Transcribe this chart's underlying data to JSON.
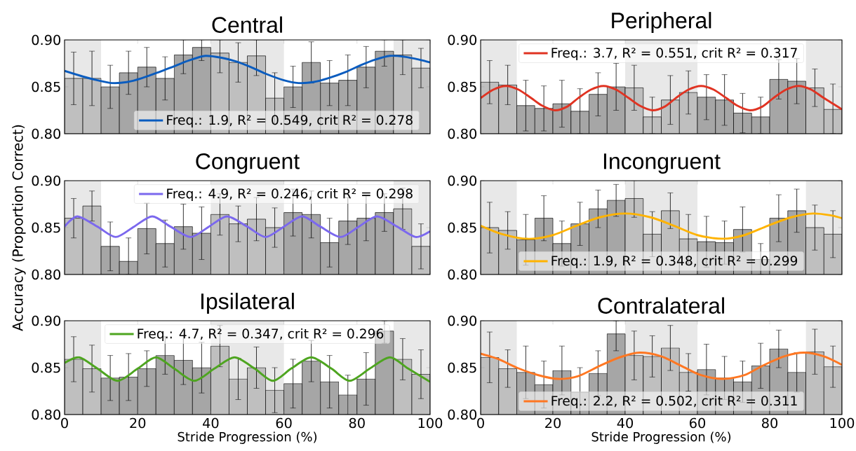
{
  "chart_data": [
    {
      "type": "histogram",
      "title": "Central",
      "xlim": [
        0,
        100
      ],
      "ylim": [
        0.8,
        0.9
      ],
      "xticks": [
        0,
        20,
        40,
        60,
        80,
        100
      ],
      "yticks": [
        {
          "value": 0.8,
          "label": "0.80"
        },
        {
          "value": 0.85,
          "label": "0.85"
        },
        {
          "value": 0.9,
          "label": "0.90"
        }
      ],
      "tick_labels": "y",
      "legend": "bottom right",
      "bins": [
        0,
        5,
        10,
        15,
        20,
        25,
        30,
        35,
        40,
        45,
        50,
        55,
        60,
        65,
        70,
        75,
        80,
        85,
        90,
        95,
        100
      ],
      "bands": [
        {
          "axis": "x",
          "from": 0,
          "to": 10,
          "color": "#e8e8e8"
        },
        {
          "axis": "x",
          "from": 40,
          "to": 60,
          "color": "#e8e8e8"
        },
        {
          "axis": "x",
          "from": 90,
          "to": 100,
          "color": "#e8e8e8"
        }
      ],
      "series": [
        {
          "values": [
            0.859,
            0.859,
            0.85,
            0.865,
            0.871,
            0.859,
            0.884,
            0.892,
            0.886,
            0.876,
            0.883,
            0.838,
            0.85,
            0.876,
            0.854,
            0.857,
            0.871,
            0.888,
            0.884,
            0.87
          ],
          "errors": [
            0.028,
            0.029,
            0.023,
            0.023,
            0.021,
            0.023,
            [
              0.864,
              0.9
            ],
            [
              0.878,
              0.9
            ],
            [
              0.865,
              0.9
            ],
            0.021,
            [
              0.862,
              0.9
            ],
            0.027,
            0.022,
            0.022,
            0.024,
            0.027,
            0.022,
            [
              0.872,
              0.9
            ],
            [
              0.863,
              0.9
            ],
            0.021
          ],
          "colors": [
            "#bfbfbf",
            "#bfbfbf",
            "#a6a6a6",
            "#a6a6a6",
            "#a6a6a6",
            "#a6a6a6",
            "#a6a6a6",
            "#a6a6a6",
            "#bfbfbf",
            "#bfbfbf",
            "#bfbfbf",
            "#bfbfbf",
            "#a6a6a6",
            "#a6a6a6",
            "#a6a6a6",
            "#a6a6a6",
            "#a6a6a6",
            "#a6a6a6",
            "#bfbfbf",
            "#bfbfbf"
          ]
        },
        {
          "type": "line",
          "name": "Freq.: 1.9, R² = 0.549, crit R² = 0.278",
          "color": "#0a5cbf",
          "x": [
            0,
            5,
            9,
            13,
            17,
            21,
            26,
            30,
            34,
            38.5,
            43,
            47,
            51,
            55,
            60,
            64,
            68,
            72,
            77,
            81,
            85,
            89,
            93,
            97,
            100
          ],
          "values": [
            0.867,
            0.861,
            0.857,
            0.854,
            0.855,
            0.859,
            0.866,
            0.872,
            0.878,
            0.883,
            0.881,
            0.877,
            0.871,
            0.864,
            0.857,
            0.854,
            0.855,
            0.859,
            0.866,
            0.873,
            0.879,
            0.883,
            0.882,
            0.879,
            0.876
          ]
        }
      ]
    },
    {
      "type": "histogram",
      "title": "Peripheral",
      "xlim": [
        0,
        100
      ],
      "ylim": [
        0.8,
        0.9
      ],
      "xticks": [
        0,
        20,
        40,
        60,
        80,
        100
      ],
      "yticks": [
        {
          "value": 0.8,
          "label": "0.80"
        },
        {
          "value": 0.85,
          "label": "0.85"
        },
        {
          "value": 0.9,
          "label": "0.90"
        }
      ],
      "tick_labels": "y",
      "legend": "top",
      "bins": [
        0,
        5,
        10,
        15,
        20,
        25,
        30,
        35,
        40,
        45,
        50,
        55,
        60,
        65,
        70,
        75,
        80,
        85,
        90,
        95,
        100
      ],
      "bands": [
        {
          "axis": "x",
          "from": 0,
          "to": 10,
          "color": "#e8e8e8"
        },
        {
          "axis": "x",
          "from": 40,
          "to": 60,
          "color": "#e8e8e8"
        },
        {
          "axis": "x",
          "from": 90,
          "to": 100,
          "color": "#e8e8e8"
        }
      ],
      "series": [
        {
          "values": [
            0.855,
            0.852,
            0.83,
            0.827,
            0.832,
            0.824,
            0.842,
            0.85,
            0.849,
            0.818,
            0.836,
            0.844,
            0.839,
            0.836,
            0.822,
            0.818,
            0.858,
            0.856,
            0.849,
            0.826
          ],
          "errors": [
            0.023,
            0.021,
            0.027,
            0.024,
            0.025,
            0.024,
            0.023,
            0.025,
            0.024,
            [
              0.8,
              0.839
            ],
            0.026,
            0.023,
            0.024,
            0.027,
            0.021,
            [
              0.8,
              0.839
            ],
            0.021,
            0.024,
            0.02,
            [
              0.8,
              0.853
            ]
          ],
          "colors": [
            "#bfbfbf",
            "#bfbfbf",
            "#a6a6a6",
            "#a6a6a6",
            "#a6a6a6",
            "#a6a6a6",
            "#a6a6a6",
            "#a6a6a6",
            "#bfbfbf",
            "#bfbfbf",
            "#bfbfbf",
            "#bfbfbf",
            "#a6a6a6",
            "#a6a6a6",
            "#a6a6a6",
            "#a6a6a6",
            "#a6a6a6",
            "#a6a6a6",
            "#bfbfbf",
            "#bfbfbf"
          ]
        },
        {
          "type": "line",
          "name": "Freq.: 3.7, R² = 0.551, crit R² = 0.317",
          "color": "#e03322",
          "x": [
            0,
            3.5,
            7,
            10.5,
            14,
            17,
            20.5,
            24,
            27,
            30.5,
            34,
            37.5,
            41,
            44,
            47.5,
            51,
            54,
            57.5,
            61,
            64.5,
            68,
            71,
            74.5,
            78,
            81,
            84.5,
            88,
            91.5,
            95,
            100
          ],
          "values": [
            0.838,
            0.847,
            0.851,
            0.847,
            0.838,
            0.83,
            0.825,
            0.829,
            0.838,
            0.847,
            0.851,
            0.847,
            0.838,
            0.83,
            0.825,
            0.829,
            0.838,
            0.847,
            0.851,
            0.847,
            0.838,
            0.83,
            0.825,
            0.829,
            0.838,
            0.847,
            0.851,
            0.847,
            0.838,
            0.826
          ]
        }
      ]
    },
    {
      "type": "histogram",
      "title": "Congruent",
      "ylabel": "Accuracy (Proportion Correct)",
      "xlim": [
        0,
        100
      ],
      "ylim": [
        0.8,
        0.9
      ],
      "xticks": [
        0,
        20,
        40,
        60,
        80,
        100
      ],
      "yticks": [
        {
          "value": 0.8,
          "label": "0.80"
        },
        {
          "value": 0.85,
          "label": "0.85"
        },
        {
          "value": 0.9,
          "label": "0.90"
        }
      ],
      "tick_labels": "y",
      "legend": "top right",
      "bins": [
        0,
        5,
        10,
        15,
        20,
        25,
        30,
        35,
        40,
        45,
        50,
        55,
        60,
        65,
        70,
        75,
        80,
        85,
        90,
        95,
        100
      ],
      "bands": [
        {
          "axis": "x",
          "from": 0,
          "to": 10,
          "color": "#e8e8e8"
        },
        {
          "axis": "x",
          "from": 40,
          "to": 60,
          "color": "#e8e8e8"
        },
        {
          "axis": "x",
          "from": 90,
          "to": 100,
          "color": "#e8e8e8"
        }
      ],
      "series": [
        {
          "values": [
            0.86,
            0.873,
            0.83,
            0.814,
            0.849,
            0.833,
            0.851,
            0.844,
            0.864,
            0.854,
            0.859,
            0.85,
            0.866,
            0.864,
            0.834,
            0.857,
            0.86,
            0.866,
            0.87,
            0.83
          ],
          "errors": [
            0.021,
            0.016,
            0.026,
            [
              0.8,
              0.839
            ],
            0.027,
            0.025,
            0.024,
            0.028,
            0.022,
            0.019,
            0.023,
            0.021,
            0.025,
            0.025,
            0.026,
            0.025,
            0.024,
            0.02,
            0.022,
            0.024
          ],
          "colors": [
            "#bfbfbf",
            "#bfbfbf",
            "#a6a6a6",
            "#a6a6a6",
            "#a6a6a6",
            "#a6a6a6",
            "#a6a6a6",
            "#a6a6a6",
            "#bfbfbf",
            "#bfbfbf",
            "#bfbfbf",
            "#bfbfbf",
            "#a6a6a6",
            "#a6a6a6",
            "#a6a6a6",
            "#a6a6a6",
            "#a6a6a6",
            "#a6a6a6",
            "#bfbfbf",
            "#bfbfbf"
          ]
        },
        {
          "type": "line",
          "name": "Freq.: 4.9, R² = 0.246, crit R² = 0.298",
          "color": "#7b68ee",
          "x": [
            0,
            3.5,
            9,
            14,
            19,
            24,
            29,
            34.5,
            39.5,
            44.5,
            50,
            55,
            60,
            65,
            70,
            75.5,
            80.5,
            85.5,
            91,
            96,
            100
          ],
          "values": [
            0.851,
            0.862,
            0.851,
            0.84,
            0.851,
            0.862,
            0.851,
            0.84,
            0.851,
            0.862,
            0.851,
            0.84,
            0.851,
            0.862,
            0.851,
            0.84,
            0.851,
            0.862,
            0.851,
            0.84,
            0.846
          ]
        }
      ]
    },
    {
      "type": "histogram",
      "title": "Incongruent",
      "xlim": [
        0,
        100
      ],
      "ylim": [
        0.8,
        0.9
      ],
      "xticks": [
        0,
        20,
        40,
        60,
        80,
        100
      ],
      "yticks": [
        {
          "value": 0.8,
          "label": "0.80"
        },
        {
          "value": 0.85,
          "label": "0.85"
        },
        {
          "value": 0.9,
          "label": "0.90"
        }
      ],
      "tick_labels": "y",
      "legend": "bottom",
      "bins": [
        0,
        5,
        10,
        15,
        20,
        25,
        30,
        35,
        40,
        45,
        50,
        55,
        60,
        65,
        70,
        75,
        80,
        85,
        90,
        95,
        100
      ],
      "bands": [
        {
          "axis": "x",
          "from": 0,
          "to": 10,
          "color": "#e8e8e8"
        },
        {
          "axis": "x",
          "from": 40,
          "to": 60,
          "color": "#e8e8e8"
        },
        {
          "axis": "x",
          "from": 90,
          "to": 100,
          "color": "#e8e8e8"
        }
      ],
      "series": [
        {
          "values": [
            0.85,
            0.847,
            0.837,
            0.86,
            0.833,
            0.854,
            0.87,
            0.879,
            0.881,
            0.843,
            0.868,
            0.838,
            0.835,
            0.834,
            0.848,
            0.816,
            0.86,
            0.868,
            0.85,
            0.843
          ],
          "errors": [
            0.027,
            0.02,
            0.027,
            0.024,
            0.024,
            0.023,
            0.02,
            0.017,
            [
              0.861,
              0.9
            ],
            0.024,
            0.019,
            0.026,
            0.027,
            0.023,
            0.024,
            [
              0.8,
              0.833
            ],
            0.025,
            0.023,
            0.024,
            0.025
          ],
          "colors": [
            "#bfbfbf",
            "#bfbfbf",
            "#a6a6a6",
            "#a6a6a6",
            "#a6a6a6",
            "#a6a6a6",
            "#a6a6a6",
            "#a6a6a6",
            "#bfbfbf",
            "#bfbfbf",
            "#bfbfbf",
            "#bfbfbf",
            "#a6a6a6",
            "#a6a6a6",
            "#a6a6a6",
            "#a6a6a6",
            "#a6a6a6",
            "#a6a6a6",
            "#bfbfbf",
            "#bfbfbf"
          ]
        },
        {
          "type": "line",
          "name": "Freq.: 1.9, R² = 0.348, crit R² = 0.299",
          "color": "#ffb300",
          "x": [
            0,
            6,
            13,
            20,
            26.5,
            33,
            40,
            47,
            53.5,
            60,
            67,
            73,
            79.5,
            86,
            92,
            97,
            100
          ],
          "values": [
            0.852,
            0.843,
            0.838,
            0.842,
            0.852,
            0.861,
            0.865,
            0.861,
            0.852,
            0.842,
            0.838,
            0.842,
            0.852,
            0.861,
            0.865,
            0.863,
            0.86
          ]
        }
      ]
    },
    {
      "type": "histogram",
      "title": "Ipsilateral",
      "xlabel": "Stride Progression (%)",
      "xlim": [
        0,
        100
      ],
      "ylim": [
        0.8,
        0.9
      ],
      "xticks": [
        0,
        20,
        40,
        60,
        80,
        100
      ],
      "yticks": [
        {
          "value": 0.8,
          "label": "0.80"
        },
        {
          "value": 0.85,
          "label": "0.85"
        },
        {
          "value": 0.9,
          "label": "0.90"
        }
      ],
      "legend": "top",
      "bins": [
        0,
        5,
        10,
        15,
        20,
        25,
        30,
        35,
        40,
        45,
        50,
        55,
        60,
        65,
        70,
        75,
        80,
        85,
        90,
        95,
        100
      ],
      "bands": [
        {
          "axis": "x",
          "from": 0,
          "to": 10,
          "color": "#e8e8e8"
        },
        {
          "axis": "x",
          "from": 40,
          "to": 60,
          "color": "#e8e8e8"
        },
        {
          "axis": "x",
          "from": 90,
          "to": 100,
          "color": "#e8e8e8"
        }
      ],
      "series": [
        {
          "values": [
            0.859,
            0.849,
            0.839,
            0.84,
            0.849,
            0.863,
            0.858,
            0.85,
            0.873,
            0.838,
            0.85,
            0.826,
            0.833,
            0.857,
            0.835,
            0.821,
            0.838,
            0.889,
            0.859,
            0.843
          ],
          "errors": [
            0.024,
            0.025,
            0.024,
            0.025,
            0.019,
            0.02,
            0.026,
            0.027,
            0.022,
            0.022,
            0.022,
            0.024,
            0.026,
            0.022,
            0.028,
            0.021,
            0.028,
            [
              0.876,
              0.9
            ],
            0.022,
            0.026
          ],
          "colors": [
            "#bfbfbf",
            "#bfbfbf",
            "#a6a6a6",
            "#a6a6a6",
            "#a6a6a6",
            "#a6a6a6",
            "#a6a6a6",
            "#a6a6a6",
            "#bfbfbf",
            "#bfbfbf",
            "#bfbfbf",
            "#bfbfbf",
            "#a6a6a6",
            "#a6a6a6",
            "#a6a6a6",
            "#a6a6a6",
            "#a6a6a6",
            "#a6a6a6",
            "#bfbfbf",
            "#bfbfbf"
          ]
        },
        {
          "type": "line",
          "name": "Freq.: 4.7, R² = 0.347, crit R² = 0.296",
          "color": "#4ea520",
          "x": [
            0,
            4,
            9,
            14.5,
            20,
            25,
            30,
            35.5,
            41,
            46.5,
            52,
            57,
            62,
            67.5,
            73,
            78,
            83.5,
            89,
            94,
            99.5,
            100
          ],
          "values": [
            0.855,
            0.861,
            0.849,
            0.836,
            0.849,
            0.861,
            0.849,
            0.836,
            0.849,
            0.861,
            0.849,
            0.836,
            0.849,
            0.861,
            0.849,
            0.836,
            0.849,
            0.861,
            0.849,
            0.836,
            0.836
          ]
        }
      ]
    },
    {
      "type": "histogram",
      "title": "Contralateral",
      "xlabel": "Stride Progression (%)",
      "xlim": [
        0,
        100
      ],
      "ylim": [
        0.8,
        0.9
      ],
      "xticks": [
        0,
        20,
        40,
        60,
        80,
        100
      ],
      "yticks": [
        {
          "value": 0.8,
          "label": "0.80"
        },
        {
          "value": 0.85,
          "label": "0.85"
        },
        {
          "value": 0.9,
          "label": "0.90"
        }
      ],
      "legend": "bottom",
      "bins": [
        0,
        5,
        10,
        15,
        20,
        25,
        30,
        35,
        40,
        45,
        50,
        55,
        60,
        65,
        70,
        75,
        80,
        85,
        90,
        95,
        100
      ],
      "bands": [
        {
          "axis": "x",
          "from": 0,
          "to": 10,
          "color": "#e8e8e8"
        },
        {
          "axis": "x",
          "from": 40,
          "to": 60,
          "color": "#e8e8e8"
        },
        {
          "axis": "x",
          "from": 90,
          "to": 100,
          "color": "#e8e8e8"
        }
      ],
      "series": [
        {
          "values": [
            0.861,
            0.849,
            0.845,
            0.832,
            0.847,
            0.824,
            0.844,
            0.886,
            0.863,
            0.862,
            0.871,
            0.845,
            0.848,
            0.839,
            0.835,
            0.852,
            0.87,
            0.845,
            0.867,
            0.851
          ],
          "errors": [
            0.027,
            0.02,
            0.028,
            0.025,
            0.026,
            [
              0.8,
              0.85
            ],
            0.024,
            [
              0.868,
              0.9
            ],
            0.026,
            0.022,
            0.024,
            0.02,
            0.027,
            0.023,
            0.022,
            0.024,
            0.02,
            0.021,
            0.024,
            0.022
          ],
          "colors": [
            "#bfbfbf",
            "#bfbfbf",
            "#a6a6a6",
            "#a6a6a6",
            "#a6a6a6",
            "#a6a6a6",
            "#a6a6a6",
            "#a6a6a6",
            "#bfbfbf",
            "#bfbfbf",
            "#bfbfbf",
            "#bfbfbf",
            "#a6a6a6",
            "#a6a6a6",
            "#a6a6a6",
            "#a6a6a6",
            "#a6a6a6",
            "#a6a6a6",
            "#bfbfbf",
            "#bfbfbf"
          ]
        },
        {
          "type": "line",
          "name": "Freq.: 2.2, R² = 0.502, crit R² = 0.311",
          "color": "#ff7722",
          "x": [
            0,
            5,
            10,
            16,
            21.5,
            27,
            33,
            38.5,
            44,
            50,
            55.5,
            61,
            67,
            73,
            78,
            84,
            89.5,
            95,
            100
          ],
          "values": [
            0.865,
            0.859,
            0.85,
            0.842,
            0.838,
            0.841,
            0.852,
            0.861,
            0.866,
            0.862,
            0.852,
            0.842,
            0.838,
            0.842,
            0.852,
            0.862,
            0.866,
            0.862,
            0.853
          ]
        }
      ]
    }
  ]
}
